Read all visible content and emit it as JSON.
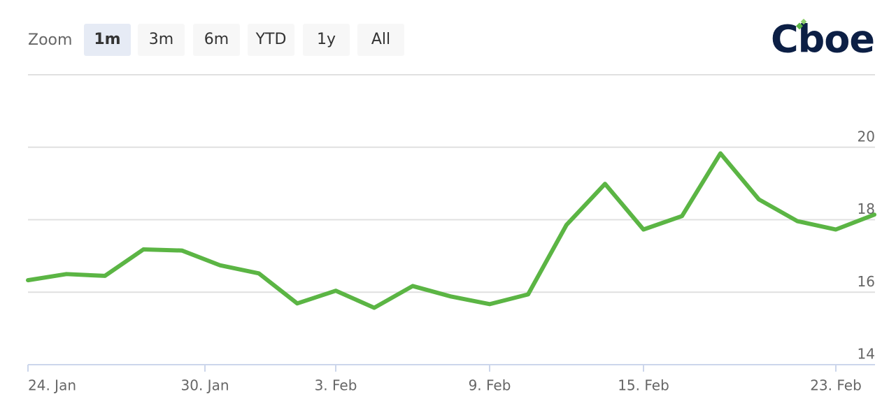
{
  "range_selector": {
    "label": "Zoom",
    "buttons": [
      "1m",
      "3m",
      "6m",
      "YTD",
      "1y",
      "All"
    ],
    "selected_index": 0
  },
  "logo": "Cboe",
  "chart_data": {
    "type": "line",
    "categories": [
      null,
      null,
      null,
      null,
      null,
      null,
      null,
      null,
      null,
      null,
      null,
      null,
      null,
      null,
      null,
      null,
      null,
      null,
      null,
      null,
      null,
      null,
      null
    ],
    "xticks": [
      {
        "value": 0,
        "label": "24. Jan"
      },
      {
        "value": 4.6,
        "label": "30. Jan"
      },
      {
        "value": 8,
        "label": "3. Feb"
      },
      {
        "value": 12,
        "label": "9. Feb"
      },
      {
        "value": 16,
        "label": "15. Feb"
      },
      {
        "value": 21,
        "label": "23. Feb"
      }
    ],
    "series": [
      {
        "color": "#5bb544",
        "values": [
          16.33,
          16.5,
          16.45,
          17.18,
          17.15,
          16.74,
          16.52,
          15.69,
          16.04,
          15.57,
          16.17,
          15.88,
          15.67,
          15.94,
          17.86,
          18.99,
          17.73,
          18.1,
          19.83,
          18.56,
          17.96,
          17.73,
          18.14
        ]
      }
    ],
    "ylim": [
      14,
      22
    ],
    "yticks": [
      14,
      16,
      18,
      20
    ],
    "grid": true
  }
}
